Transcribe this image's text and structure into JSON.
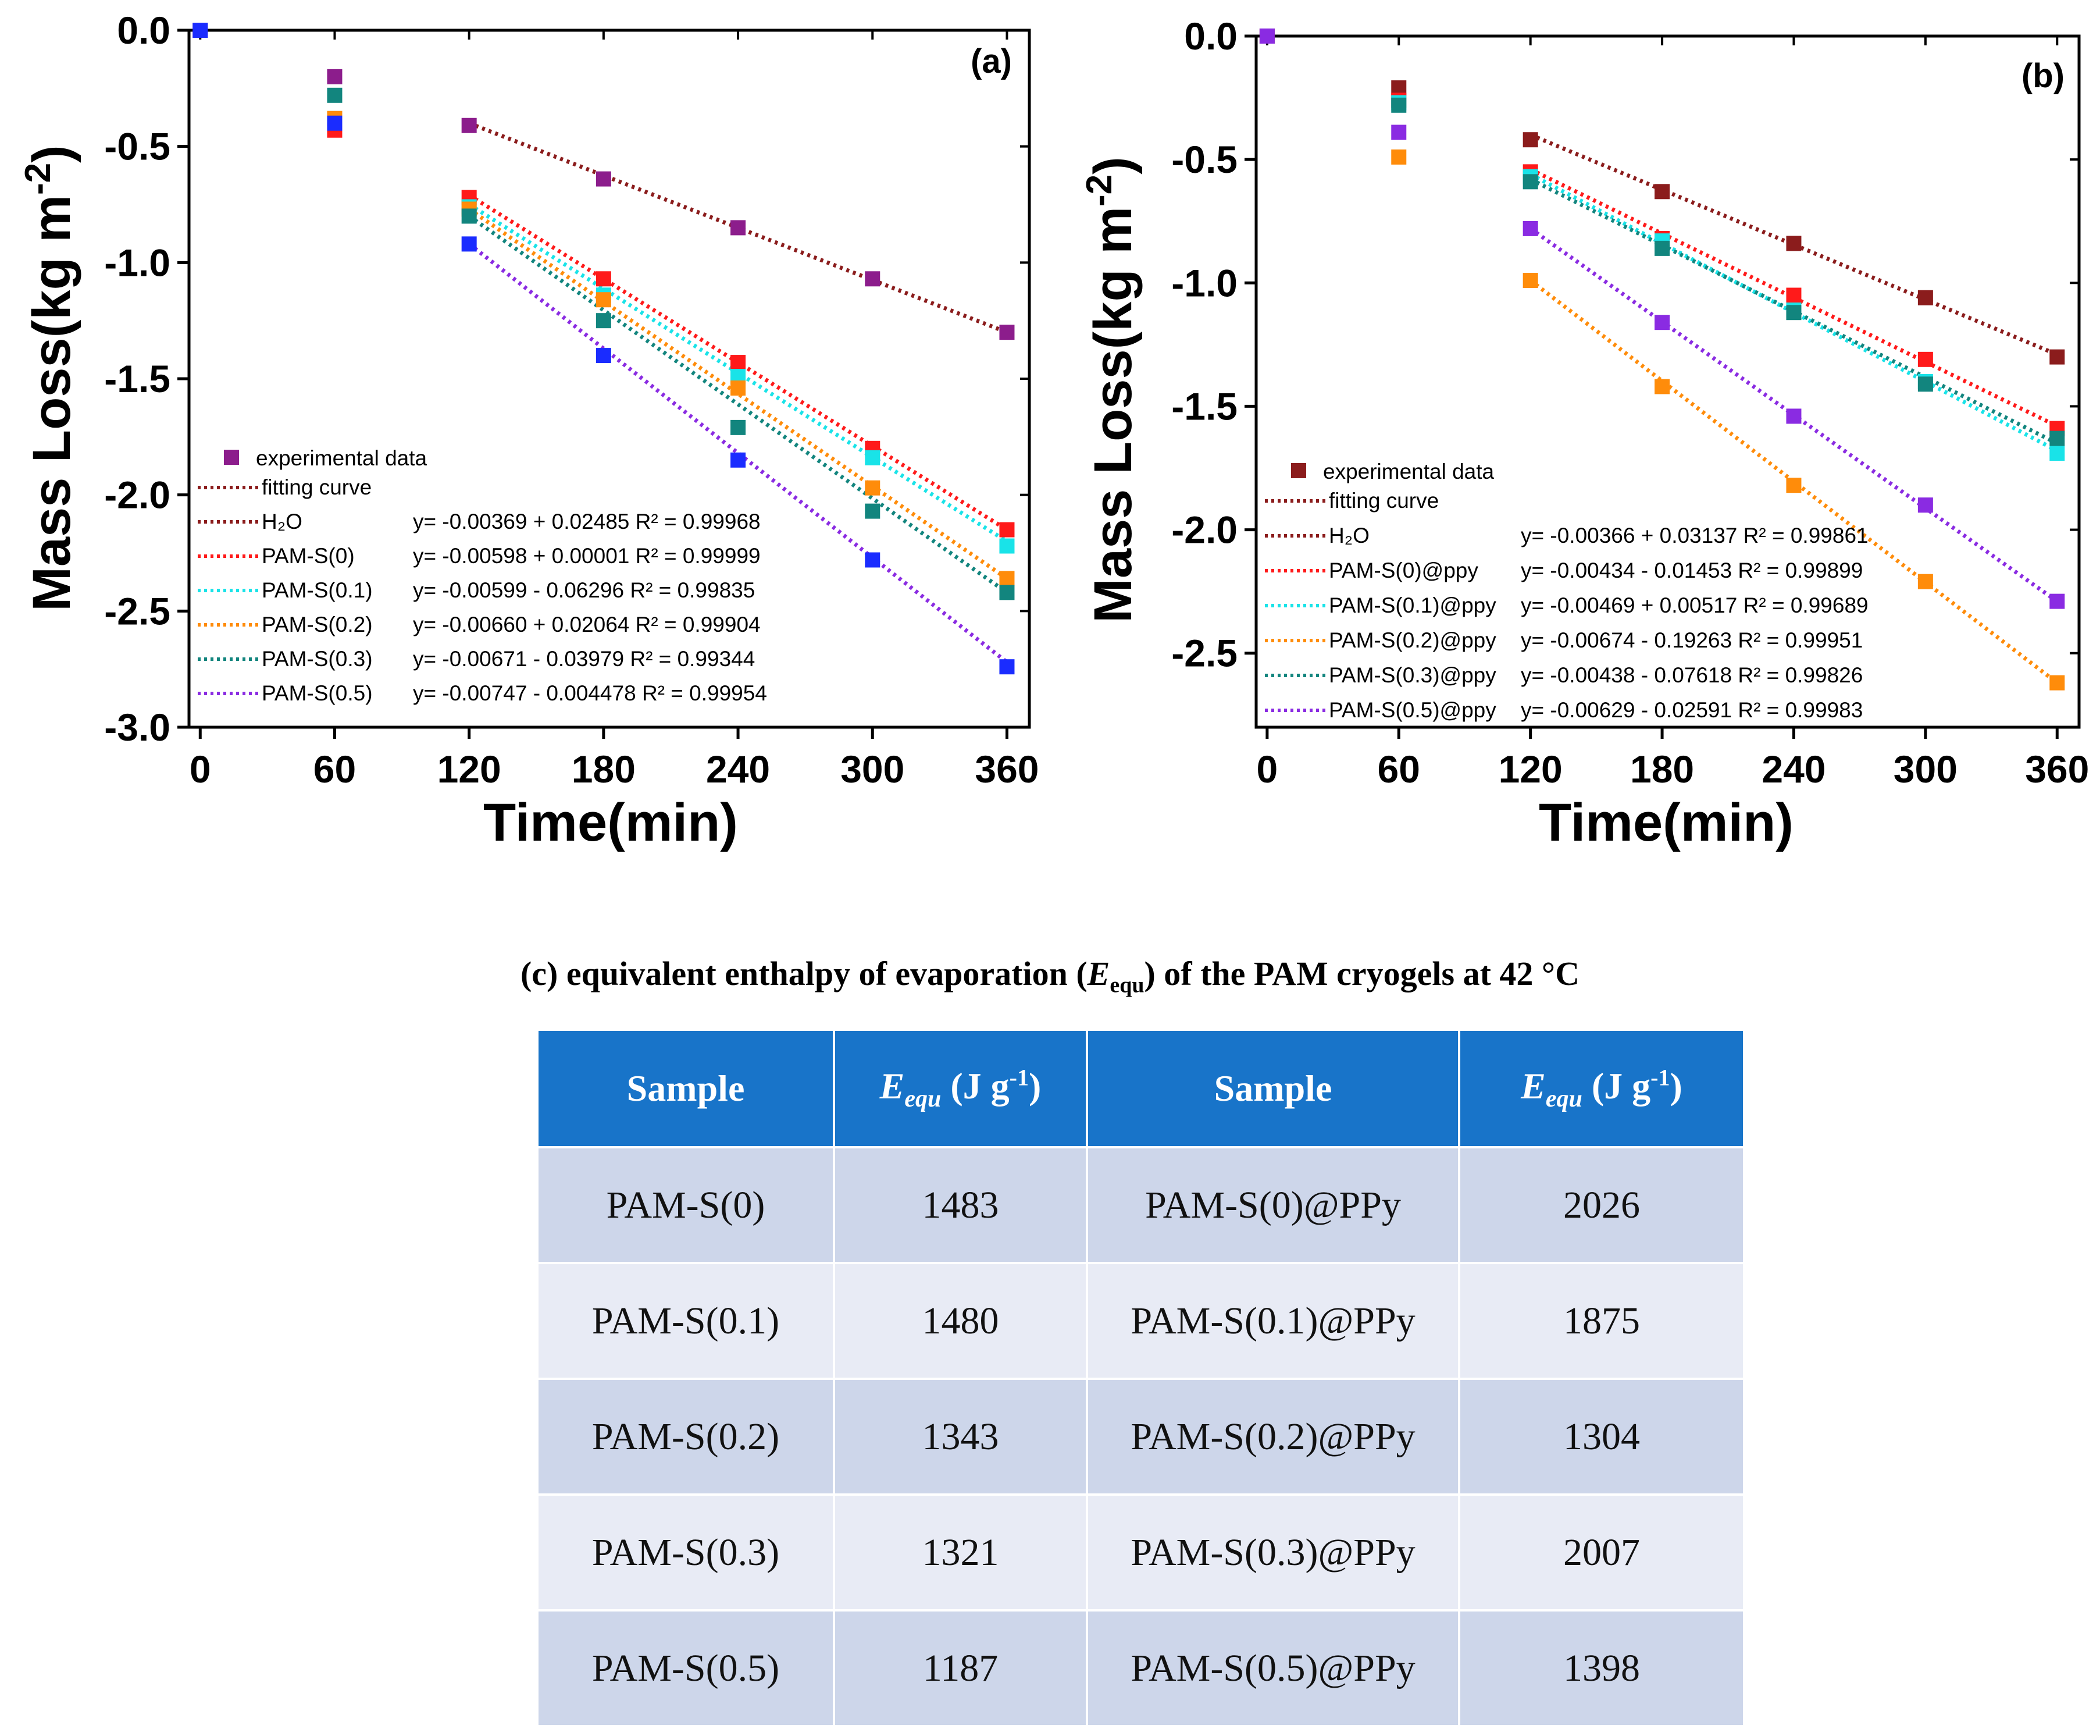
{
  "colors": {
    "h2o": "#8b1c1c",
    "s0": "#ff1a1a",
    "s01": "#19e3e8",
    "s02": "#ff8c0a",
    "s03": "#12857e",
    "s05": "#8a2be2",
    "blue": "#1a2cff",
    "purple": "#8c1d8c",
    "table_header": "#1874c9"
  },
  "chart_data": [
    {
      "type": "scatter",
      "panel": "(a)",
      "xlabel": "Time(min)",
      "ylabel": "Mass Loss(kg m⁻²)",
      "ylabel_main": "Mass Loss(kg m",
      "ylabel_sup": "-2",
      "ylabel_close": ")",
      "xlim": [
        -5,
        370
      ],
      "ylim": [
        -3.0,
        0.0
      ],
      "xticks": [
        "0",
        "60",
        "120",
        "180",
        "240",
        "300",
        "360"
      ],
      "xtick_values": [
        0,
        60,
        120,
        180,
        240,
        300,
        360
      ],
      "yticks": [
        "0.0",
        "-0.5",
        "-1.0",
        "-1.5",
        "-2.0",
        "-2.5",
        "-3.0"
      ],
      "ytick_values": [
        0.0,
        -0.5,
        -1.0,
        -1.5,
        -2.0,
        -2.5,
        -3.0
      ],
      "legend_header": {
        "marker_label": "experimental data",
        "marker_color": "#8c1d8c",
        "line_label": "fitting curve",
        "line_color": "#8b1c1c"
      },
      "series": [
        {
          "name": "H2O",
          "label": "H₂O",
          "equation": "y= -0.00369 + 0.02485  R² = 0.99968",
          "color": "#8c1d8c",
          "line_color": "#8b1c1c",
          "x": [
            0,
            60,
            120,
            180,
            240,
            300,
            360
          ],
          "y": [
            0.0,
            -0.2,
            -0.41,
            -0.64,
            -0.85,
            -1.07,
            -1.3
          ],
          "fit_x": [
            120,
            360
          ],
          "fit_y": [
            -0.4,
            -1.3
          ]
        },
        {
          "name": "PAM-S(0)",
          "label": "PAM-S(0)",
          "equation": "y= -0.00598 + 0.00001  R² = 0.99999",
          "color": "#ff1a1a",
          "line_color": "#ff1a1a",
          "x": [
            60,
            120,
            180,
            240,
            300,
            360
          ],
          "y": [
            -0.43,
            -0.72,
            -1.07,
            -1.43,
            -1.8,
            -2.15
          ],
          "fit_x": [
            120,
            360
          ],
          "fit_y": [
            -0.71,
            -2.15
          ]
        },
        {
          "name": "PAM-S(0.1)",
          "label": "PAM-S(0.1)",
          "equation": "y= -0.00599 - 0.06296  R² = 0.99835",
          "color": "#19e3e8",
          "line_color": "#19e3e8",
          "x": [
            60,
            120,
            180,
            240,
            300,
            360
          ],
          "y": [
            -0.38,
            -0.76,
            -1.14,
            -1.49,
            -1.84,
            -2.22
          ],
          "fit_x": [
            120,
            360
          ],
          "fit_y": [
            -0.75,
            -2.2
          ]
        },
        {
          "name": "PAM-S(0.2)",
          "label": "PAM-S(0.2)",
          "equation": "y= -0.00660 + 0.02064  R² = 0.99904",
          "color": "#ff8c0a",
          "line_color": "#ff8c0a",
          "x": [
            60,
            120,
            180,
            240,
            300,
            360
          ],
          "y": [
            -0.38,
            -0.77,
            -1.16,
            -1.54,
            -1.97,
            -2.36
          ],
          "fit_x": [
            120,
            360
          ],
          "fit_y": [
            -0.77,
            -2.36
          ]
        },
        {
          "name": "PAM-S(0.3)",
          "label": "PAM-S(0.3)",
          "equation": "y= -0.00671 - 0.03979  R² = 0.99344",
          "color": "#12857e",
          "line_color": "#12857e",
          "x": [
            60,
            120,
            180,
            240,
            300,
            360
          ],
          "y": [
            -0.28,
            -0.8,
            -1.25,
            -1.71,
            -2.07,
            -2.42
          ],
          "fit_x": [
            120,
            360
          ],
          "fit_y": [
            -0.8,
            -2.42
          ]
        },
        {
          "name": "PAM-S(0.5)",
          "label": "PAM-S(0.5)",
          "equation": "y= -0.00747 - 0.004478  R² = 0.99954",
          "color": "#1a2cff",
          "line_color": "#8a2be2",
          "x": [
            0,
            60,
            120,
            180,
            240,
            300,
            360
          ],
          "y": [
            0.0,
            -0.4,
            -0.92,
            -1.4,
            -1.85,
            -2.28,
            -2.74
          ],
          "fit_x": [
            120,
            360
          ],
          "fit_y": [
            -0.92,
            -2.72
          ]
        }
      ]
    },
    {
      "type": "scatter",
      "panel": "(b)",
      "xlabel": "Time(min)",
      "ylabel": "Mass Loss(kg m⁻²)",
      "ylabel_main": "Mass Loss(kg m",
      "ylabel_sup": "-2",
      "ylabel_close": ")",
      "xlim": [
        -5,
        370
      ],
      "ylim": [
        -2.8,
        0.0
      ],
      "xticks": [
        "0",
        "60",
        "120",
        "180",
        "240",
        "300",
        "360"
      ],
      "xtick_values": [
        0,
        60,
        120,
        180,
        240,
        300,
        360
      ],
      "yticks": [
        "0.0",
        "-0.5",
        "-1.0",
        "-1.5",
        "-2.0",
        "-2.5"
      ],
      "ytick_values": [
        0.0,
        -0.5,
        -1.0,
        -1.5,
        -2.0,
        -2.5
      ],
      "legend_header": {
        "marker_label": "experimental data",
        "marker_color": "#8b1c1c",
        "line_label": "fitting curve",
        "line_color": "#8b1c1c"
      },
      "series": [
        {
          "name": "H2O",
          "label": "H₂O",
          "equation": "y= -0.00366 + 0.03137  R² = 0.99861",
          "color": "#8b1c1c",
          "line_color": "#8b1c1c",
          "x": [
            0,
            60,
            120,
            180,
            240,
            300,
            360
          ],
          "y": [
            0.0,
            -0.21,
            -0.42,
            -0.63,
            -0.84,
            -1.06,
            -1.3
          ],
          "fit_x": [
            120,
            360
          ],
          "fit_y": [
            -0.4,
            -1.29
          ]
        },
        {
          "name": "PAM-S(0)@ppy",
          "label": "PAM-S(0)@ppy",
          "equation": "y= -0.00434 - 0.01453  R² = 0.99899",
          "color": "#ff1a1a",
          "line_color": "#ff1a1a",
          "x": [
            60,
            120,
            180,
            240,
            300,
            360
          ],
          "y": [
            -0.26,
            -0.55,
            -0.82,
            -1.05,
            -1.31,
            -1.59
          ],
          "fit_x": [
            120,
            360
          ],
          "fit_y": [
            -0.54,
            -1.58
          ]
        },
        {
          "name": "PAM-S(0.1)@ppy",
          "label": "PAM-S(0.1)@ppy",
          "equation": "y= -0.00469 + 0.00517  R² = 0.99689",
          "color": "#19e3e8",
          "line_color": "#19e3e8",
          "x": [
            60,
            120,
            180,
            240,
            300,
            360
          ],
          "y": [
            -0.27,
            -0.57,
            -0.83,
            -1.11,
            -1.4,
            -1.69
          ],
          "fit_x": [
            120,
            360
          ],
          "fit_y": [
            -0.56,
            -1.68
          ]
        },
        {
          "name": "PAM-S(0.2)@ppy",
          "label": "PAM-S(0.2)@ppy",
          "equation": "y= -0.00674 - 0.19263  R² = 0.99951",
          "color": "#ff8c0a",
          "line_color": "#ff8c0a",
          "x": [
            60,
            120,
            180,
            240,
            300,
            360
          ],
          "y": [
            -0.49,
            -0.99,
            -1.42,
            -1.82,
            -2.21,
            -2.62
          ],
          "fit_x": [
            120,
            360
          ],
          "fit_y": [
            -0.99,
            -2.62
          ]
        },
        {
          "name": "PAM-S(0.3)@ppy",
          "label": "PAM-S(0.3)@ppy",
          "equation": "y= -0.00438 - 0.07618  R² = 0.99826",
          "color": "#12857e",
          "line_color": "#12857e",
          "x": [
            60,
            120,
            180,
            240,
            300,
            360
          ],
          "y": [
            -0.28,
            -0.59,
            -0.86,
            -1.12,
            -1.41,
            -1.63
          ],
          "fit_x": [
            120,
            360
          ],
          "fit_y": [
            -0.58,
            -1.65
          ]
        },
        {
          "name": "PAM-S(0.5)@ppy",
          "label": "PAM-S(0.5)@ppy",
          "equation": "y= -0.00629 - 0.02591  R² = 0.99983",
          "color": "#8a2be2",
          "line_color": "#8a2be2",
          "x": [
            0,
            60,
            120,
            180,
            240,
            300,
            360
          ],
          "y": [
            0.0,
            -0.39,
            -0.78,
            -1.16,
            -1.54,
            -1.9,
            -2.29
          ],
          "fit_x": [
            120,
            360
          ],
          "fit_y": [
            -0.78,
            -2.29
          ]
        }
      ]
    },
    {
      "type": "table",
      "title": "(c) equivalent enthalpy of evaporation (Eequ) of the PAM cryogels at 42 °C",
      "columns": [
        "Sample",
        "Eequ (J g-1)",
        "Sample",
        "Eequ (J g-1)"
      ],
      "rows": [
        [
          "PAM-S(0)",
          "1483",
          "PAM-S(0)@PPy",
          "2026"
        ],
        [
          "PAM-S(0.1)",
          "1480",
          "PAM-S(0.1)@PPy",
          "1875"
        ],
        [
          "PAM-S(0.2)",
          "1343",
          "PAM-S(0.2)@PPy",
          "1304"
        ],
        [
          "PAM-S(0.3)",
          "1321",
          "PAM-S(0.3)@PPy",
          "2007"
        ],
        [
          "PAM-S(0.5)",
          "1187",
          "PAM-S(0.5)@PPy",
          "1398"
        ]
      ]
    }
  ],
  "table": {
    "caption_prefix": "(c) equivalent enthalpy of evaporation (",
    "caption_symbol": "E",
    "caption_sub": "equ",
    "caption_suffix": ") of the PAM cryogels at 42 °C",
    "col_sample": "Sample",
    "col_symbol": "E",
    "col_sub": "equ",
    "col_unit": " (J g",
    "col_unit_sup": "-1",
    "col_unit_close": ")",
    "rows": [
      {
        "a": "PAM-S(0)",
        "ea": "1483",
        "b": "PAM-S(0)@PPy",
        "eb": "2026"
      },
      {
        "a": "PAM-S(0.1)",
        "ea": "1480",
        "b": "PAM-S(0.1)@PPy",
        "eb": "1875"
      },
      {
        "a": "PAM-S(0.2)",
        "ea": "1343",
        "b": "PAM-S(0.2)@PPy",
        "eb": "1304"
      },
      {
        "a": "PAM-S(0.3)",
        "ea": "1321",
        "b": "PAM-S(0.3)@PPy",
        "eb": "2007"
      },
      {
        "a": "PAM-S(0.5)",
        "ea": "1187",
        "b": "PAM-S(0.5)@PPy",
        "eb": "1398"
      }
    ]
  }
}
